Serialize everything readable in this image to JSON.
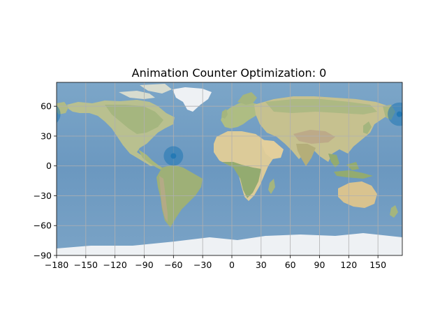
{
  "map": {
    "title": "Animation Counter Optimization: 0",
    "projection": "plate-carree",
    "background": "natural-earth-shaded-relief",
    "extent": {
      "lon": [
        -180,
        180
      ],
      "lat": [
        -90,
        90
      ]
    },
    "visible_lon_range": [
      -180,
      180
    ],
    "grid": true,
    "x_ticks": [
      -180,
      -150,
      -120,
      -90,
      -60,
      -30,
      0,
      30,
      60,
      90,
      120,
      150
    ],
    "x_tick_labels": [
      "−180",
      "−150",
      "−120",
      "−90",
      "−60",
      "−30",
      "0",
      "30",
      "60",
      "90",
      "120",
      "150"
    ],
    "y_ticks": [
      60,
      30,
      0,
      -30,
      -60,
      -90
    ],
    "y_tick_labels": [
      "60",
      "30",
      "0",
      "−30",
      "−60",
      "−90"
    ],
    "markers": [
      {
        "name": "caribbean",
        "lon": -60,
        "lat": 10,
        "radius_deg": 10,
        "color": "#1f77b4",
        "opacity": 0.55
      },
      {
        "name": "kamchatka-bering",
        "lon": 172,
        "lat": 52,
        "radius_deg": 12,
        "color": "#1f77b4",
        "opacity": 0.55
      },
      {
        "name": "kamchatka-bering-wrap",
        "lon": -188,
        "lat": 52,
        "radius_deg": 12,
        "color": "#1f77b4",
        "opacity": 0.55
      }
    ],
    "colors": {
      "ocean": "#6f9cc2",
      "ocean_deep": "#5d8bb6",
      "land": "#c9c79a",
      "land_green": "#9fb37a",
      "desert": "#e2d3a6",
      "mountain": "#b7a688",
      "ice": "#eef1f4",
      "grid": "#b0b0b0",
      "marker": "#1f77b4"
    }
  }
}
